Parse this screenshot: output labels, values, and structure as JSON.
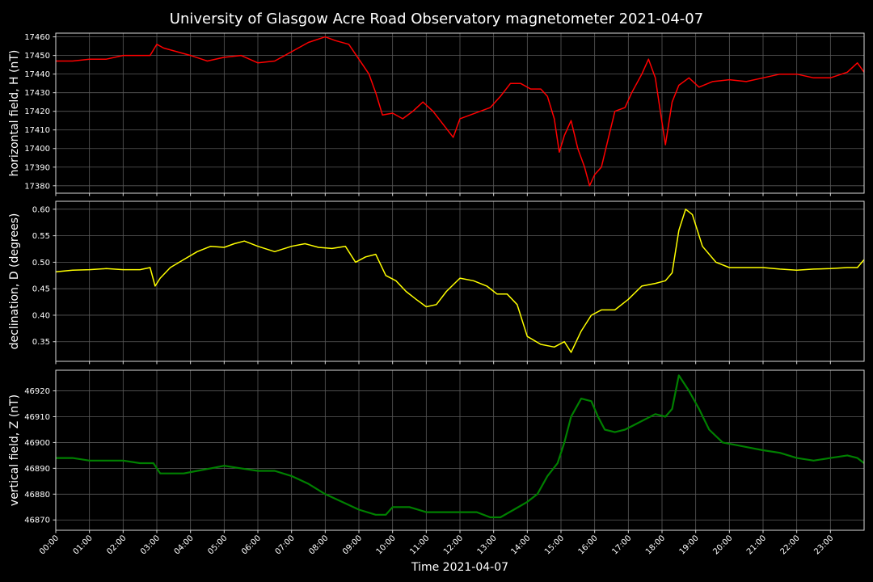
{
  "title": "University of Glasgow Acre Road Observatory magnetometer 2021-04-07",
  "xlabel": "Time 2021-04-07",
  "colors": {
    "background": "#000000",
    "grid": "#5a5a5a",
    "frame": "#d8d8d8",
    "text": "#ffffff"
  },
  "chart_data": [
    {
      "type": "line",
      "ylabel": "horizontal field, H (nT)",
      "color": "#ff0000",
      "ylim": [
        17376,
        17462
      ],
      "yticks": [
        17380,
        17390,
        17400,
        17410,
        17420,
        17430,
        17440,
        17450,
        17460
      ],
      "xlim": [
        0,
        24
      ],
      "grid": true,
      "series": [
        {
          "x": [
            0,
            0.5,
            1,
            1.5,
            2,
            2.5,
            2.8,
            3.0,
            3.2,
            3.6,
            4.0,
            4.5,
            5.0,
            5.5,
            6.0,
            6.5,
            7.0,
            7.5,
            8.0,
            8.3,
            8.7,
            9.0,
            9.3,
            9.5,
            9.7,
            10.0,
            10.3,
            10.6,
            10.9,
            11.2,
            11.5,
            11.8,
            12.0,
            12.3,
            12.6,
            12.9,
            13.2,
            13.5,
            13.8,
            14.1,
            14.4,
            14.6,
            14.8,
            14.95,
            15.1,
            15.3,
            15.5,
            15.7,
            15.85,
            16.0,
            16.2,
            16.4,
            16.6,
            16.9,
            17.1,
            17.4,
            17.6,
            17.8,
            17.95,
            18.1,
            18.3,
            18.5,
            18.8,
            19.1,
            19.5,
            20.0,
            20.5,
            21.0,
            21.5,
            22.0,
            22.5,
            23.0,
            23.5,
            23.8,
            24.0
          ],
          "values": [
            17447,
            17447,
            17448,
            17448,
            17450,
            17450,
            17450,
            17456,
            17454,
            17452,
            17450,
            17447,
            17449,
            17450,
            17446,
            17447,
            17452,
            17457,
            17460,
            17458,
            17456,
            17448,
            17440,
            17430,
            17418,
            17419,
            17416,
            17420,
            17425,
            17420,
            17413,
            17406,
            17416,
            17418,
            17420,
            17422,
            17428,
            17435,
            17435,
            17432,
            17432,
            17428,
            17416,
            17398,
            17407,
            17415,
            17400,
            17390,
            17380,
            17386,
            17390,
            17405,
            17420,
            17422,
            17430,
            17440,
            17448,
            17438,
            17420,
            17402,
            17425,
            17434,
            17438,
            17433,
            17436,
            17437,
            17436,
            17438,
            17440,
            17440,
            17438,
            17438,
            17441,
            17446,
            17441
          ]
        }
      ]
    },
    {
      "type": "line",
      "ylabel": "declination, D (degrees)",
      "color": "#ffff00",
      "ylim": [
        0.313,
        0.615
      ],
      "yticks": [
        0.35,
        0.4,
        0.45,
        0.5,
        0.55,
        0.6
      ],
      "ytick_labels": [
        "0.35",
        "0.40",
        "0.45",
        "0.50",
        "0.55",
        "0.60"
      ],
      "xlim": [
        0,
        24
      ],
      "grid": true,
      "series": [
        {
          "x": [
            0,
            0.5,
            1,
            1.5,
            2,
            2.5,
            2.8,
            2.95,
            3.1,
            3.4,
            3.8,
            4.2,
            4.6,
            5.0,
            5.3,
            5.6,
            6.0,
            6.5,
            7.0,
            7.4,
            7.8,
            8.2,
            8.6,
            8.9,
            9.2,
            9.5,
            9.8,
            10.1,
            10.4,
            10.7,
            11.0,
            11.3,
            11.6,
            12.0,
            12.4,
            12.8,
            13.1,
            13.4,
            13.7,
            14.0,
            14.4,
            14.8,
            15.1,
            15.3,
            15.6,
            15.9,
            16.2,
            16.6,
            17.0,
            17.4,
            17.8,
            18.1,
            18.3,
            18.5,
            18.7,
            18.9,
            19.2,
            19.6,
            20.0,
            20.5,
            21.0,
            21.5,
            22.0,
            22.5,
            23.0,
            23.5,
            23.8,
            24.0
          ],
          "values": [
            0.482,
            0.485,
            0.486,
            0.488,
            0.486,
            0.486,
            0.49,
            0.455,
            0.47,
            0.49,
            0.505,
            0.52,
            0.53,
            0.528,
            0.535,
            0.54,
            0.53,
            0.52,
            0.53,
            0.535,
            0.528,
            0.526,
            0.53,
            0.5,
            0.51,
            0.515,
            0.475,
            0.465,
            0.445,
            0.43,
            0.416,
            0.42,
            0.445,
            0.47,
            0.465,
            0.455,
            0.44,
            0.44,
            0.42,
            0.36,
            0.345,
            0.34,
            0.35,
            0.33,
            0.37,
            0.4,
            0.41,
            0.41,
            0.43,
            0.455,
            0.46,
            0.465,
            0.48,
            0.56,
            0.6,
            0.59,
            0.53,
            0.5,
            0.49,
            0.49,
            0.49,
            0.487,
            0.485,
            0.487,
            0.488,
            0.49,
            0.49,
            0.505
          ]
        }
      ]
    },
    {
      "type": "line",
      "ylabel": "vertical field, Z (nT)",
      "color": "#008000",
      "ylim": [
        46866,
        46928
      ],
      "yticks": [
        46870,
        46880,
        46890,
        46900,
        46910,
        46920
      ],
      "xlim": [
        0,
        24
      ],
      "grid": true,
      "series": [
        {
          "x": [
            0,
            0.5,
            1,
            1.5,
            2,
            2.5,
            2.9,
            3.1,
            3.4,
            3.8,
            4.2,
            4.6,
            5.0,
            5.5,
            6.0,
            6.5,
            7.0,
            7.5,
            8.0,
            8.5,
            9.0,
            9.5,
            9.8,
            10.0,
            10.5,
            11.0,
            11.5,
            12.0,
            12.5,
            12.9,
            13.2,
            13.6,
            14.0,
            14.3,
            14.6,
            14.9,
            15.1,
            15.3,
            15.6,
            15.9,
            16.1,
            16.3,
            16.6,
            16.9,
            17.2,
            17.5,
            17.8,
            18.1,
            18.3,
            18.5,
            18.8,
            19.1,
            19.4,
            19.8,
            20.2,
            20.6,
            21.0,
            21.5,
            22.0,
            22.5,
            23.0,
            23.5,
            23.8,
            24.0
          ],
          "values": [
            46894,
            46894,
            46893,
            46893,
            46893,
            46892,
            46892,
            46888,
            46888,
            46888,
            46889,
            46890,
            46891,
            46890,
            46889,
            46889,
            46887,
            46884,
            46880,
            46877,
            46874,
            46872,
            46872,
            46875,
            46875,
            46873,
            46873,
            46873,
            46873,
            46871,
            46871,
            46874,
            46877,
            46880,
            46887,
            46892,
            46900,
            46910,
            46917,
            46916,
            46910,
            46905,
            46904,
            46905,
            46907,
            46909,
            46911,
            46910,
            46913,
            46926,
            46920,
            46913,
            46905,
            46900,
            46899,
            46898,
            46897,
            46896,
            46894,
            46893,
            46894,
            46895,
            46894,
            46892
          ]
        }
      ]
    }
  ],
  "x_ticks": [
    "00:00",
    "01:00",
    "02:00",
    "03:00",
    "04:00",
    "05:00",
    "06:00",
    "07:00",
    "08:00",
    "09:00",
    "10:00",
    "11:00",
    "12:00",
    "13:00",
    "14:00",
    "15:00",
    "16:00",
    "17:00",
    "18:00",
    "19:00",
    "20:00",
    "21:00",
    "22:00",
    "23:00"
  ]
}
